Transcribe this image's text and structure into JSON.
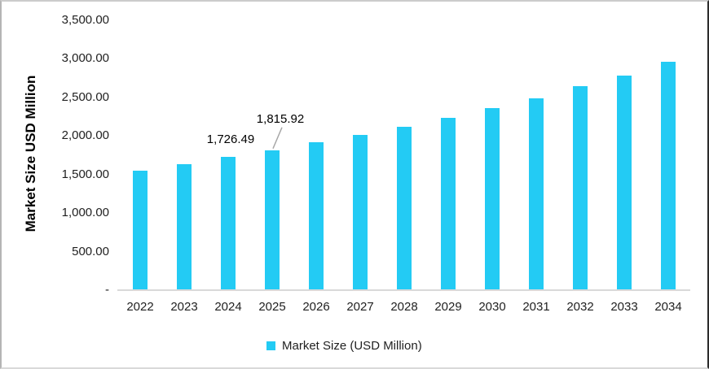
{
  "chart_data": {
    "type": "bar",
    "title": "",
    "xlabel": "",
    "ylabel": "Market Size USD Million",
    "categories": [
      "2022",
      "2023",
      "2024",
      "2025",
      "2026",
      "2027",
      "2028",
      "2029",
      "2030",
      "2031",
      "2032",
      "2033",
      "2034"
    ],
    "series": [
      {
        "name": "Market Size (USD Million)",
        "values": [
          1550,
          1635,
          1726.49,
          1815.92,
          1915,
          2015,
          2120,
          2235,
          2360,
          2490,
          2645,
          2785,
          2960
        ]
      }
    ],
    "ylim": [
      0,
      3500
    ],
    "yticks": [
      {
        "value": 0,
        "label": "-"
      },
      {
        "value": 500,
        "label": "500.00"
      },
      {
        "value": 1000,
        "label": "1,000.00"
      },
      {
        "value": 1500,
        "label": "1,500.00"
      },
      {
        "value": 2000,
        "label": "2,000.00"
      },
      {
        "value": 2500,
        "label": "2,500.00"
      },
      {
        "value": 3000,
        "label": "3,000.00"
      },
      {
        "value": 3500,
        "label": "3,500.00"
      }
    ],
    "grid": false,
    "legend_position": "bottom",
    "bar_color": "#23CBF4",
    "axis_line_color": "#D9D9D9",
    "leader_line_color": "#A6A6A6",
    "data_labels": [
      {
        "category": "2024",
        "text": "1,726.49",
        "leader": false
      },
      {
        "category": "2025",
        "text": "1,815.92",
        "leader": true
      }
    ]
  },
  "legend": {
    "label": "Market Size (USD Million)",
    "swatch_color": "#23CBF4"
  }
}
